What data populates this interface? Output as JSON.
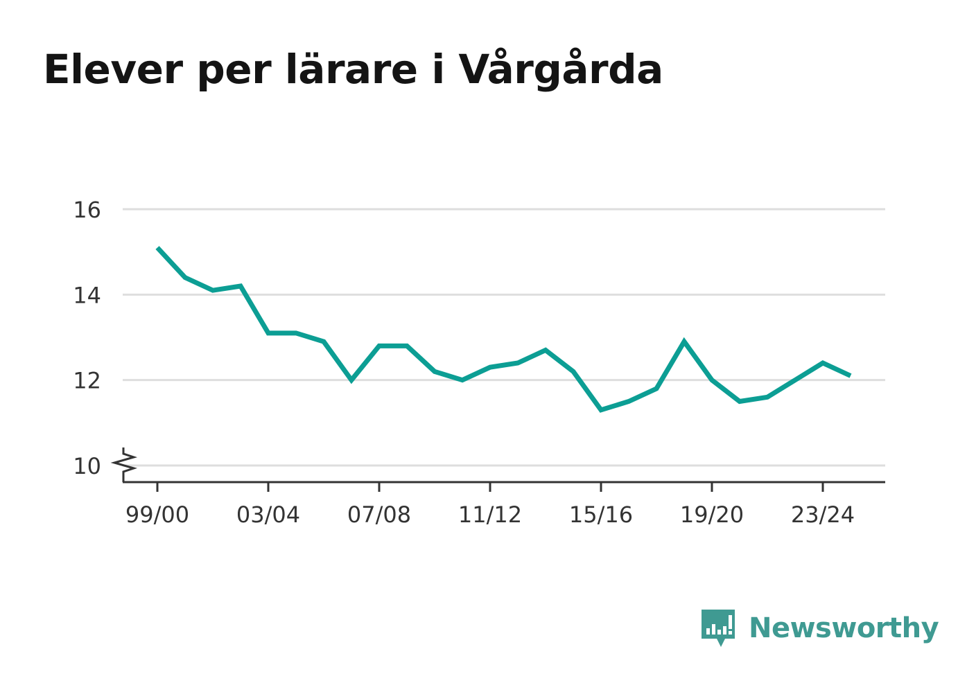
{
  "title": "Elever per lärare i Vårgårda",
  "brand": {
    "name": "Newsworthy",
    "icon": "newsworthy-logo-icon",
    "color": "#3f9a92"
  },
  "colors": {
    "line": "#0c9e94",
    "grid": "#dedede",
    "axis": "#333333"
  },
  "chart_data": {
    "type": "line",
    "title": "Elever per lärare i Vårgårda",
    "xlabel": "",
    "ylabel": "",
    "x": [
      "99/00",
      "00/01",
      "01/02",
      "02/03",
      "03/04",
      "04/05",
      "05/06",
      "06/07",
      "07/08",
      "08/09",
      "09/10",
      "10/11",
      "11/12",
      "12/13",
      "13/14",
      "14/15",
      "15/16",
      "16/17",
      "17/18",
      "18/19",
      "19/20",
      "20/21",
      "21/22",
      "22/23",
      "23/24",
      "24/25"
    ],
    "x_tick_labels": [
      "99/00",
      "03/04",
      "07/08",
      "11/12",
      "15/16",
      "19/20",
      "23/24"
    ],
    "y_ticks": [
      10,
      12,
      14,
      16
    ],
    "ylim": [
      10,
      16
    ],
    "y_axis_break": true,
    "grid": true,
    "series": [
      {
        "values": [
          15.1,
          14.4,
          14.1,
          14.2,
          13.1,
          13.1,
          12.9,
          12.0,
          12.8,
          12.8,
          12.2,
          12.0,
          12.3,
          12.4,
          12.7,
          12.2,
          11.3,
          11.5,
          11.8,
          12.9,
          12.0,
          11.5,
          11.6,
          12.0,
          12.4,
          12.1
        ]
      }
    ]
  }
}
